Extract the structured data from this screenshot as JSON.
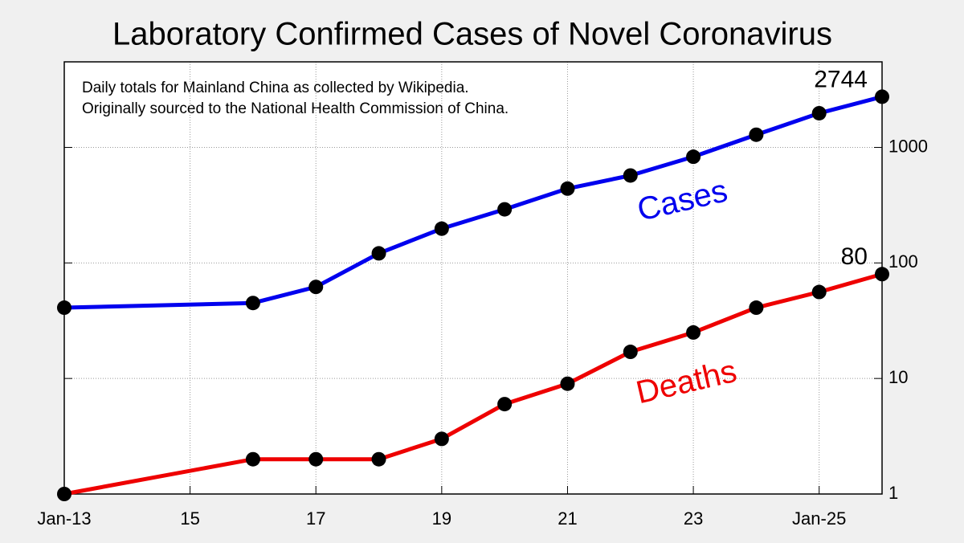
{
  "chart_data": {
    "type": "line",
    "title": "Laboratory Confirmed Cases of Novel Coronavirus",
    "annotations": [
      "Daily totals for Mainland China as collected by Wikipedia.",
      "Originally sourced to the National Health Commission of China."
    ],
    "x": [
      13,
      16,
      17,
      18,
      19,
      20,
      21,
      22,
      23,
      24,
      25,
      26
    ],
    "xlim": [
      13,
      26
    ],
    "xticks": [
      {
        "value": 13,
        "label": "Jan-13"
      },
      15,
      17,
      19,
      21,
      23,
      {
        "value": 25,
        "label": "Jan-25"
      }
    ],
    "ylim": [
      1,
      5500
    ],
    "yticks": [
      1,
      10,
      100,
      1000
    ],
    "log_y": true,
    "grid": true,
    "series": [
      {
        "name": "Cases",
        "color": "#0000ee",
        "values": [
          41,
          45,
          62,
          121,
          198,
          291,
          440,
          571,
          830,
          1287,
          1975,
          2744
        ]
      },
      {
        "name": "Deaths",
        "color": "#ee0000",
        "values": [
          1,
          2,
          2,
          2,
          3,
          6,
          9,
          17,
          25,
          41,
          56,
          80
        ]
      }
    ]
  }
}
